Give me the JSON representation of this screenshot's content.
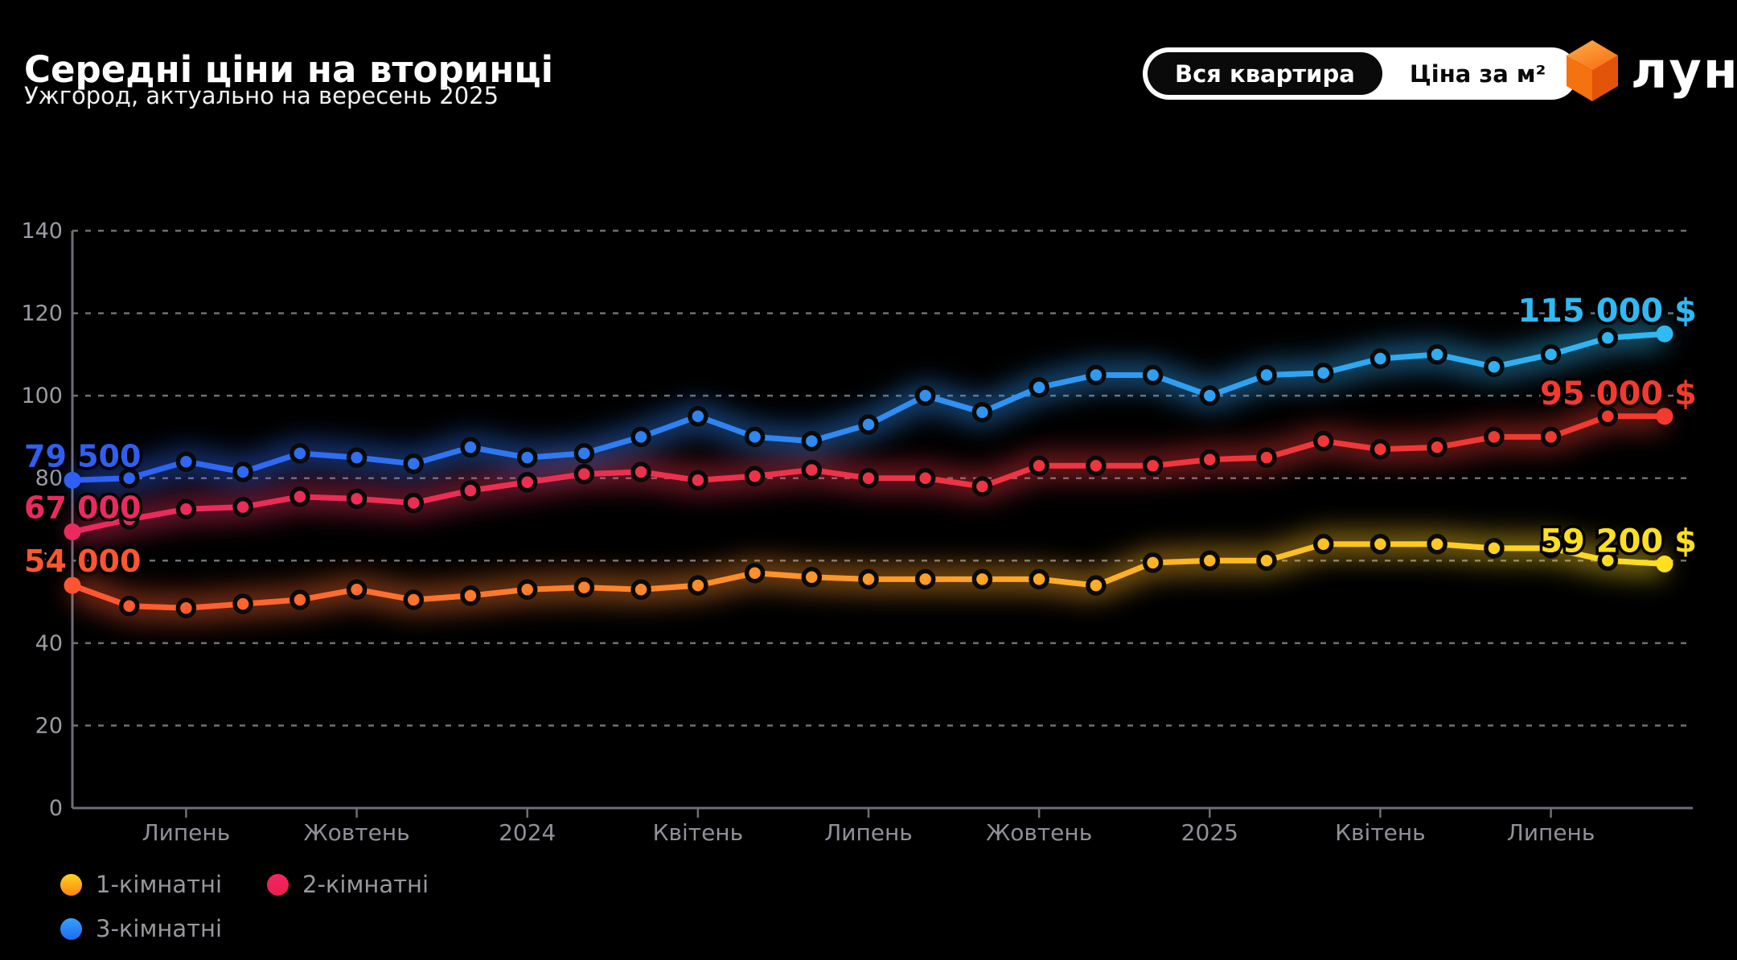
{
  "header": {
    "title": "Середні ціни на вторинці",
    "subtitle": "Ужгород, актуально на вересень 2025",
    "toggle": {
      "option_whole": "Вся квартира",
      "option_per_m2": "Ціна за м²",
      "selected": "Вся квартира"
    },
    "logo_text": "лун",
    "logo_colors": {
      "top": "#FB9030",
      "left": "#F4720F",
      "right": "#E2540A"
    }
  },
  "chart_data": {
    "type": "line",
    "title": "Середні ціни на вторинці",
    "y_axis_unit": "thousand $",
    "ylim": [
      0,
      140
    ],
    "y_step": 20,
    "y_tick_labels": [
      "0",
      "20",
      "40",
      "60",
      "80",
      "100",
      "120",
      "140"
    ],
    "grid": true,
    "n_points": 29,
    "x_ticks": [
      {
        "i": 2,
        "label": "Липень"
      },
      {
        "i": 5,
        "label": "Жовтень"
      },
      {
        "i": 8,
        "label": "2024"
      },
      {
        "i": 11,
        "label": "Квітень"
      },
      {
        "i": 14,
        "label": "Липень"
      },
      {
        "i": 17,
        "label": "Жовтень"
      },
      {
        "i": 20,
        "label": "2025"
      },
      {
        "i": 23,
        "label": "Квітень"
      },
      {
        "i": 26,
        "label": "Липень"
      }
    ],
    "series": [
      {
        "name": "1-кімнатні",
        "color_start": "#FF5530",
        "color_end": "#FFDF20",
        "label_start": "54 000",
        "label_end": "59 200 $",
        "values": [
          54,
          49,
          48.5,
          49.5,
          50.5,
          53,
          50.5,
          51.5,
          53,
          53.5,
          53,
          54,
          57,
          56,
          55.5,
          55.5,
          55.5,
          55.5,
          54,
          59.5,
          60,
          60,
          64,
          64,
          64,
          63,
          63,
          60,
          59.2
        ]
      },
      {
        "name": "2-кімнатні",
        "color_start": "#EA2A5F",
        "color_end": "#F23B2E",
        "label_start": "67 000",
        "label_end": "95 000 $",
        "values": [
          67,
          70,
          72.5,
          73,
          75.5,
          75,
          74,
          77,
          79,
          81,
          81.5,
          79.5,
          80.5,
          82,
          80,
          80,
          78,
          83,
          83,
          83,
          84.5,
          85,
          89,
          87,
          87.5,
          90,
          90,
          95,
          95
        ]
      },
      {
        "name": "3-кімнатні",
        "color_start": "#2F5FF2",
        "color_end": "#30B9F2",
        "label_start": "79 500",
        "label_end": "115 000 $",
        "values": [
          79.5,
          80,
          84,
          81.5,
          86,
          85,
          83.5,
          87.5,
          85,
          86,
          90,
          95,
          90,
          89,
          93,
          100,
          96,
          102,
          105,
          105,
          100,
          105,
          105.5,
          109,
          110,
          107,
          110,
          114,
          115
        ]
      }
    ],
    "legend_position": "bottom-left"
  },
  "legend": {
    "items": [
      {
        "label": "1-кімнатні",
        "dot_colors": [
          "#FFD21E",
          "#FF8414"
        ]
      },
      {
        "label": "2-кімнатні",
        "dot_colors": [
          "#F4275F",
          "#E91E4F"
        ]
      },
      {
        "label": "3-кімнатні",
        "dot_colors": [
          "#35A1F8",
          "#1F6BF2"
        ]
      }
    ]
  }
}
